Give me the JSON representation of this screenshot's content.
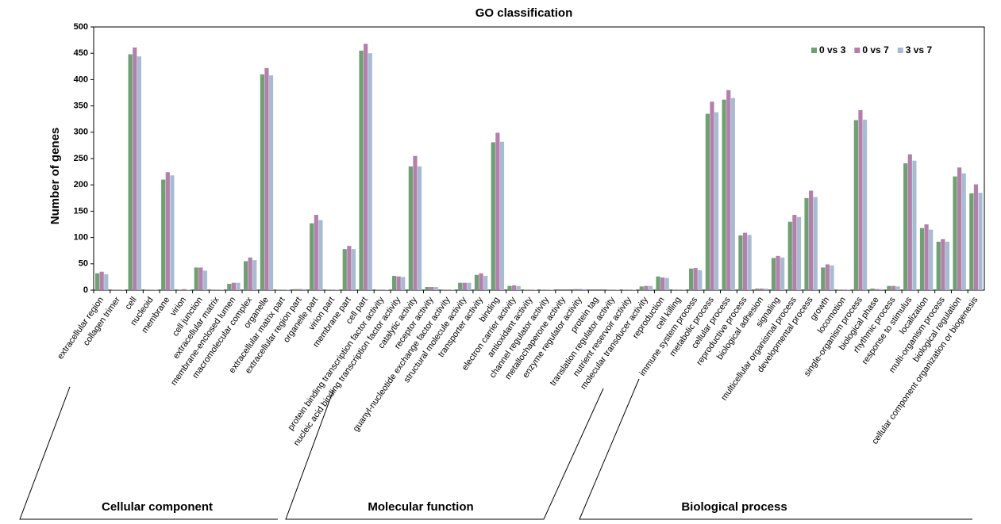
{
  "chart_data": {
    "type": "bar",
    "title": "GO classification",
    "ylabel": "Number of genes",
    "categories": [
      "extracellular region",
      "collagen trimer",
      "cell",
      "nucleoid",
      "membrane",
      "virion",
      "cell junction",
      "extracellular matrix",
      "membrane-enclosed lumen",
      "macromolecular complex",
      "organelle",
      "extracellular matrix part",
      "extracellular region part",
      "organelle part",
      "virion part",
      "membrane part",
      "cell part",
      "protein binding transcription factor activity",
      "nucleic acid binding transcription factor activity",
      "catalytic activity",
      "receptor activity",
      "guanyl-nucleotide exchange factor activity",
      "structural molecule activity",
      "transporter activity",
      "binding",
      "electron carrier activity",
      "antioxidant activity",
      "channel regulator activity",
      "metallochaperone activity",
      "enzyme regulator activity",
      "protein tag",
      "translation regulator activity",
      "nutrient reservoir activity",
      "molecular transducer activity",
      "reproduction",
      "cell killing",
      "immune system process",
      "metabolic process",
      "cellular process",
      "reproductive process",
      "biological adhesion",
      "signaling",
      "multicellular organismal process",
      "developmental process",
      "growth",
      "locomotion",
      "single-organism process",
      "biological phase",
      "rhythmic process",
      "response to stimulus",
      "localization",
      "multi-organism process",
      "biological regulation",
      "cellular component organization or biogenesis"
    ],
    "series": [
      {
        "name": "0 vs 3",
        "color": "#6f9f72",
        "values": [
          32,
          1,
          448,
          1,
          210,
          1,
          43,
          1,
          12,
          55,
          410,
          1,
          2,
          127,
          1,
          78,
          455,
          1,
          27,
          235,
          6,
          1,
          14,
          29,
          281,
          8,
          1,
          1,
          0,
          2,
          0,
          1,
          1,
          7,
          26,
          1,
          41,
          335,
          362,
          104,
          3,
          61,
          130,
          175,
          43,
          1,
          323,
          3,
          8,
          241,
          118,
          92,
          216,
          184
        ]
      },
      {
        "name": "0 vs 7",
        "color": "#b37fab",
        "values": [
          35,
          1,
          461,
          1,
          224,
          2,
          43,
          1,
          14,
          62,
          422,
          1,
          2,
          143,
          1,
          84,
          468,
          1,
          26,
          255,
          6,
          1,
          14,
          32,
          299,
          9,
          1,
          1,
          0,
          2,
          0,
          1,
          1,
          8,
          24,
          1,
          42,
          358,
          380,
          109,
          3,
          65,
          143,
          189,
          49,
          1,
          342,
          2,
          8,
          258,
          125,
          97,
          233,
          201
        ]
      },
      {
        "name": "3 vs 7",
        "color": "#a9bbd3",
        "values": [
          30,
          1,
          444,
          1,
          218,
          1,
          37,
          1,
          14,
          57,
          408,
          1,
          2,
          133,
          1,
          78,
          450,
          1,
          25,
          235,
          6,
          1,
          14,
          27,
          282,
          8,
          1,
          1,
          0,
          2,
          0,
          1,
          1,
          8,
          23,
          1,
          38,
          338,
          365,
          105,
          3,
          62,
          139,
          177,
          47,
          1,
          324,
          2,
          7,
          246,
          115,
          92,
          222,
          185
        ]
      }
    ],
    "ylim": [
      0,
      500
    ],
    "yticks": [
      0,
      50,
      100,
      150,
      200,
      250,
      300,
      350,
      400,
      450,
      500
    ],
    "legend": "top-right",
    "group_labels": [
      "Cellular component",
      "Molecular function",
      "Biological process"
    ]
  }
}
